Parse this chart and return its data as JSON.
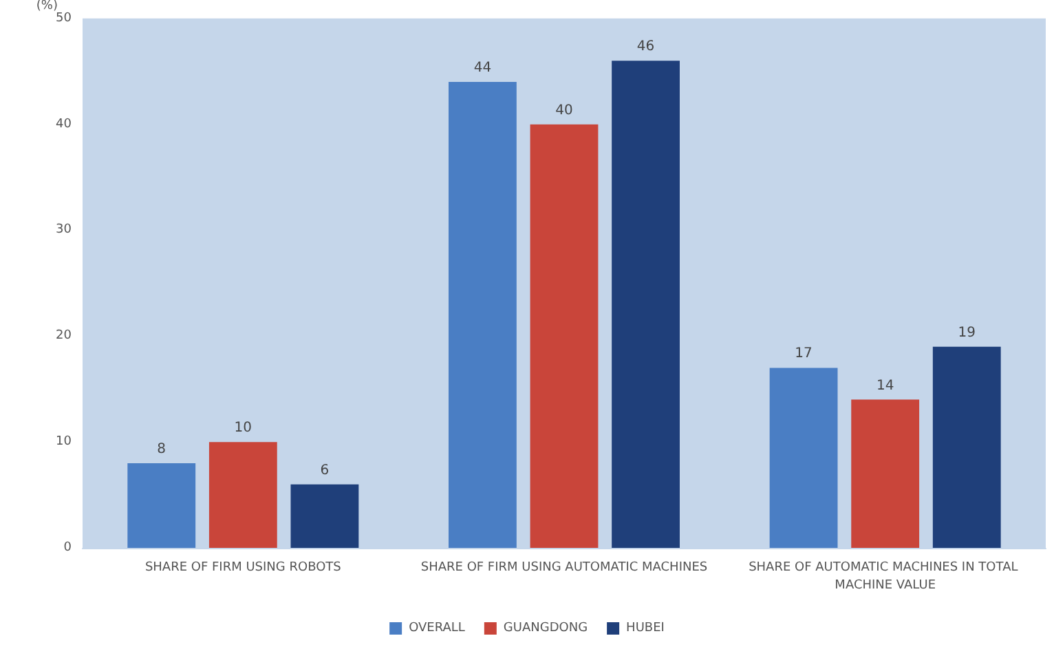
{
  "chart_data": {
    "type": "bar",
    "ylabel": "(%)",
    "categories": [
      "SHARE OF FIRM USING ROBOTS",
      "SHARE OF FIRM USING AUTOMATIC MACHINES",
      "SHARE OF AUTOMATIC MACHINES IN TOTAL MACHINE VALUE"
    ],
    "series": [
      {
        "name": "OVERALL",
        "color": "#4a7ec4",
        "values": [
          8,
          44,
          17
        ]
      },
      {
        "name": "GUANGDONG",
        "color": "#c9453a",
        "values": [
          10,
          40,
          14
        ]
      },
      {
        "name": "HUBEI",
        "color": "#1f3f7a",
        "values": [
          6,
          46,
          19
        ]
      }
    ],
    "ylim": [
      0,
      50
    ],
    "yticks": [
      0,
      10,
      20,
      30,
      40,
      50
    ],
    "grid": false,
    "legend": "bottom",
    "data_labels": true
  }
}
